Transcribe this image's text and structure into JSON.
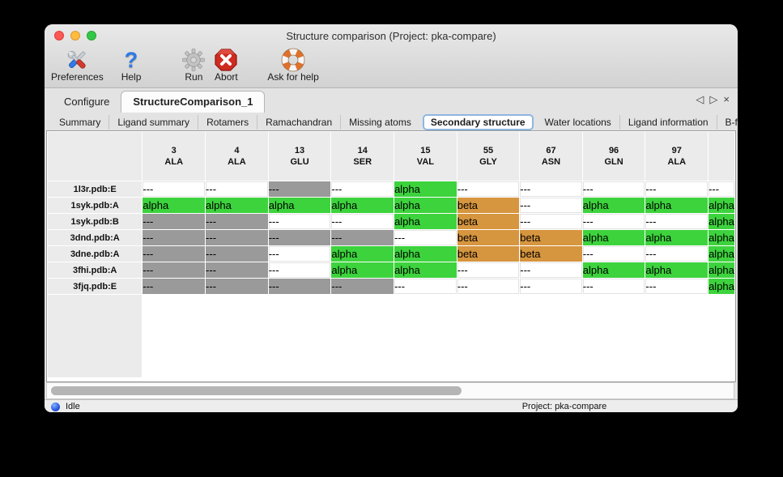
{
  "window": {
    "title": "Structure comparison (Project: pka-compare)",
    "traffic_lights": [
      "close",
      "minimize",
      "zoom"
    ]
  },
  "toolbar": {
    "items": [
      {
        "label": "Preferences",
        "icon": "tools-icon"
      },
      {
        "label": "Help",
        "icon": "question-mark-icon"
      },
      {
        "label": "Run",
        "icon": "gear-icon",
        "disabled": true
      },
      {
        "label": "Abort",
        "icon": "stop-icon"
      },
      {
        "label": "Ask for help",
        "icon": "lifebuoy-icon"
      }
    ]
  },
  "tabs": {
    "items": [
      {
        "label": "Configure",
        "selected": false
      },
      {
        "label": "StructureComparison_1",
        "selected": true
      }
    ],
    "controls": [
      "scroll-left",
      "scroll-right",
      "close-tab"
    ]
  },
  "subtabs": {
    "items": [
      "Summary",
      "Ligand summary",
      "Rotamers",
      "Ramachandran",
      "Missing atoms",
      "Secondary structure",
      "Water locations",
      "Ligand information",
      "B-factors"
    ],
    "selected": "Secondary structure",
    "controls": [
      "scroll-left",
      "scroll-right"
    ]
  },
  "colors": {
    "alpha": "#3dd33d",
    "beta": "#d6953f",
    "gap": "#9a9a9a"
  },
  "table": {
    "columns": [
      {
        "num": "3",
        "res": "ALA"
      },
      {
        "num": "4",
        "res": "ALA"
      },
      {
        "num": "13",
        "res": "GLU"
      },
      {
        "num": "14",
        "res": "SER"
      },
      {
        "num": "15",
        "res": "VAL"
      },
      {
        "num": "55",
        "res": "GLY"
      },
      {
        "num": "67",
        "res": "ASN"
      },
      {
        "num": "96",
        "res": "GLN"
      },
      {
        "num": "97",
        "res": "ALA"
      }
    ],
    "partial_column": {
      "num": "",
      "res": ""
    },
    "rows": [
      {
        "label": "1l3r.pdb:E",
        "cells": [
          {
            "t": "---",
            "s": "blank"
          },
          {
            "t": "---",
            "s": "blank"
          },
          {
            "t": "---",
            "s": "gap"
          },
          {
            "t": "---",
            "s": "blank"
          },
          {
            "t": "alpha",
            "s": "alpha"
          },
          {
            "t": "---",
            "s": "blank"
          },
          {
            "t": "---",
            "s": "blank"
          },
          {
            "t": "---",
            "s": "blank"
          },
          {
            "t": "---",
            "s": "blank"
          },
          {
            "t": "---",
            "s": "blank"
          }
        ]
      },
      {
        "label": "1syk.pdb:A",
        "cells": [
          {
            "t": "alpha",
            "s": "alpha"
          },
          {
            "t": "alpha",
            "s": "alpha"
          },
          {
            "t": "alpha",
            "s": "alpha"
          },
          {
            "t": "alpha",
            "s": "alpha"
          },
          {
            "t": "alpha",
            "s": "alpha"
          },
          {
            "t": "beta",
            "s": "beta"
          },
          {
            "t": "---",
            "s": "blank"
          },
          {
            "t": "alpha",
            "s": "alpha"
          },
          {
            "t": "alpha",
            "s": "alpha"
          },
          {
            "t": "alpha",
            "s": "alpha"
          }
        ]
      },
      {
        "label": "1syk.pdb:B",
        "cells": [
          {
            "t": "---",
            "s": "gap"
          },
          {
            "t": "---",
            "s": "gap"
          },
          {
            "t": "---",
            "s": "blank"
          },
          {
            "t": "---",
            "s": "blank"
          },
          {
            "t": "alpha",
            "s": "alpha"
          },
          {
            "t": "beta",
            "s": "beta"
          },
          {
            "t": "---",
            "s": "blank"
          },
          {
            "t": "---",
            "s": "blank"
          },
          {
            "t": "---",
            "s": "blank"
          },
          {
            "t": "alpha",
            "s": "alpha"
          }
        ]
      },
      {
        "label": "3dnd.pdb:A",
        "cells": [
          {
            "t": "---",
            "s": "gap"
          },
          {
            "t": "---",
            "s": "gap"
          },
          {
            "t": "---",
            "s": "gap"
          },
          {
            "t": "---",
            "s": "gap"
          },
          {
            "t": "---",
            "s": "blank"
          },
          {
            "t": "beta",
            "s": "beta"
          },
          {
            "t": "beta",
            "s": "beta"
          },
          {
            "t": "alpha",
            "s": "alpha"
          },
          {
            "t": "alpha",
            "s": "alpha"
          },
          {
            "t": "alpha",
            "s": "alpha"
          }
        ]
      },
      {
        "label": "3dne.pdb:A",
        "cells": [
          {
            "t": "---",
            "s": "gap"
          },
          {
            "t": "---",
            "s": "gap"
          },
          {
            "t": "---",
            "s": "blank"
          },
          {
            "t": "alpha",
            "s": "alpha"
          },
          {
            "t": "alpha",
            "s": "alpha"
          },
          {
            "t": "beta",
            "s": "beta"
          },
          {
            "t": "beta",
            "s": "beta"
          },
          {
            "t": "---",
            "s": "blank"
          },
          {
            "t": "---",
            "s": "blank"
          },
          {
            "t": "alpha",
            "s": "alpha"
          }
        ]
      },
      {
        "label": "3fhi.pdb:A",
        "cells": [
          {
            "t": "---",
            "s": "gap"
          },
          {
            "t": "---",
            "s": "gap"
          },
          {
            "t": "---",
            "s": "blank"
          },
          {
            "t": "alpha",
            "s": "alpha"
          },
          {
            "t": "alpha",
            "s": "alpha"
          },
          {
            "t": "---",
            "s": "blank"
          },
          {
            "t": "---",
            "s": "blank"
          },
          {
            "t": "alpha",
            "s": "alpha"
          },
          {
            "t": "alpha",
            "s": "alpha"
          },
          {
            "t": "alpha",
            "s": "alpha"
          }
        ]
      },
      {
        "label": "3fjq.pdb:E",
        "cells": [
          {
            "t": "---",
            "s": "gap"
          },
          {
            "t": "---",
            "s": "gap"
          },
          {
            "t": "---",
            "s": "gap"
          },
          {
            "t": "---",
            "s": "gap"
          },
          {
            "t": "---",
            "s": "blank"
          },
          {
            "t": "---",
            "s": "blank"
          },
          {
            "t": "---",
            "s": "blank"
          },
          {
            "t": "---",
            "s": "blank"
          },
          {
            "t": "---",
            "s": "blank"
          },
          {
            "t": "alpha",
            "s": "alpha"
          }
        ]
      }
    ]
  },
  "statusbar": {
    "status": "Idle",
    "project": "Project: pka-compare"
  }
}
